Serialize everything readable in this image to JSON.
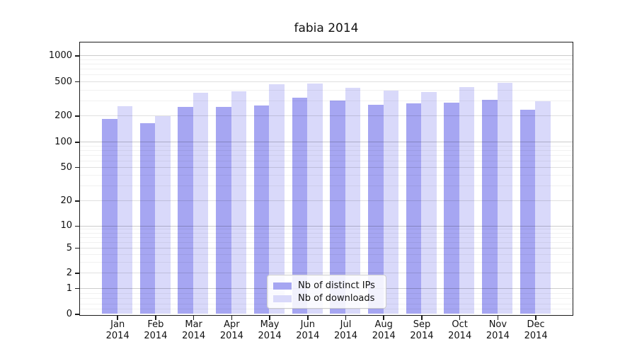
{
  "chart_data": {
    "type": "bar",
    "title": "fabia 2014",
    "year": "2014",
    "categories": [
      "Jan",
      "Feb",
      "Mar",
      "Apr",
      "May",
      "Jun",
      "Jul",
      "Aug",
      "Sep",
      "Oct",
      "Nov",
      "Dec"
    ],
    "series": [
      {
        "name": "Nb of distinct IPs",
        "color": "#a6a6f2",
        "values": [
          183,
          164,
          250,
          250,
          260,
          323,
          298,
          269,
          279,
          283,
          305,
          233
        ]
      },
      {
        "name": "Nb of downloads",
        "color": "#d9d9fa",
        "values": [
          255,
          198,
          369,
          385,
          462,
          472,
          418,
          388,
          375,
          430,
          484,
          296
        ]
      }
    ],
    "yscale": "log-with-zero",
    "y_ticks": [
      1000,
      500,
      200,
      100,
      50,
      20,
      10,
      5,
      2,
      1,
      0
    ],
    "ylim": [
      0,
      1500
    ],
    "grid": true,
    "legend_position": "lower center"
  }
}
